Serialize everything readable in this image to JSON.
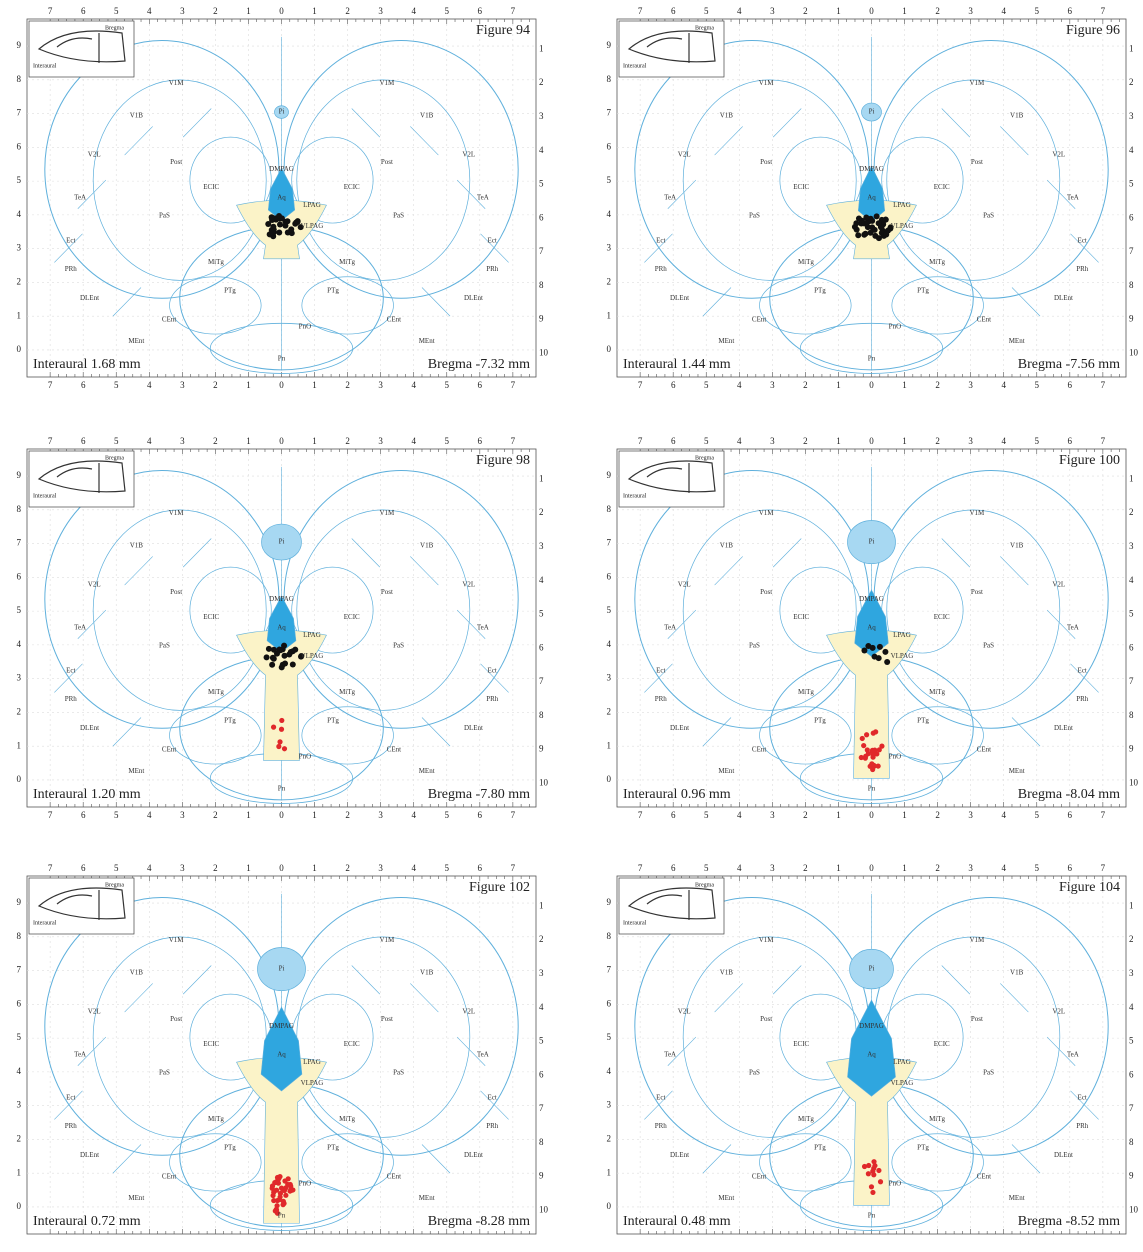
{
  "axis": {
    "top": [
      "7",
      "6",
      "5",
      "4",
      "3",
      "2",
      "1",
      "0",
      "1",
      "2",
      "3",
      "4",
      "5",
      "6",
      "7"
    ],
    "left": [
      "9",
      "8",
      "7",
      "6",
      "5",
      "4",
      "3",
      "2",
      "1",
      "0"
    ],
    "right": [
      "1",
      "2",
      "3",
      "4",
      "5",
      "6",
      "7",
      "8",
      "9",
      "10"
    ]
  },
  "inset": {
    "interaural": "Interaural",
    "bregma": "Bregma"
  },
  "panels": [
    {
      "figure": "Figure 94",
      "interaural": "Interaural 1.68 mm",
      "bregma": "Bregma -7.32 mm",
      "left_labels": [
        "V1M",
        "V1B",
        "V2L",
        "TeA",
        "Ect",
        "PRh",
        "DLEnt",
        "MEnt",
        "CEnt",
        "Post",
        "PaS",
        "ECIC",
        "MiTg",
        "PTg"
      ],
      "right_labels": [
        "V1M",
        "V1B",
        "V2L",
        "TeA",
        "Ect",
        "PRh",
        "DLEnt",
        "MEnt",
        "CEnt",
        "Post",
        "PaS",
        "ECIC",
        "MiTg",
        "PTg"
      ],
      "mid_labels": [
        "Pi",
        "DMPAG",
        "Aq",
        "LPAG",
        "VLPAG",
        "PnO",
        "Pn"
      ]
    },
    {
      "figure": "Figure 96",
      "interaural": "Interaural 1.44 mm",
      "bregma": "Bregma -7.56 mm",
      "left_labels": [
        "V1M",
        "V1B",
        "V2L",
        "TeA",
        "Ect",
        "PRh",
        "DLEnt",
        "MEnt",
        "CEnt",
        "Post",
        "PaS",
        "ECIC",
        "MiTg",
        "PTg"
      ],
      "right_labels": [
        "V1M",
        "V1B",
        "V2L",
        "TeA",
        "Ect",
        "PRh",
        "DLEnt",
        "MEnt",
        "CEnt",
        "Post",
        "PaS",
        "ECIC",
        "MiTg",
        "PTg"
      ],
      "mid_labels": [
        "Pi",
        "DMPAG",
        "Aq",
        "LPAG",
        "VLPAG",
        "PnO",
        "Pn"
      ]
    },
    {
      "figure": "Figure 98",
      "interaural": "Interaural 1.20 mm",
      "bregma": "Bregma -7.80 mm",
      "left_labels": [
        "V1M",
        "V1B",
        "V2L",
        "TeA",
        "Ect",
        "PRh",
        "DLEnt",
        "MEnt",
        "CEnt",
        "Post",
        "PaS",
        "ECIC",
        "MiTg",
        "PTg"
      ],
      "right_labels": [
        "V1M",
        "V1B",
        "V2L",
        "TeA",
        "Ect",
        "PRh",
        "DLEnt",
        "MEnt",
        "CEnt",
        "Post",
        "PaS",
        "ECIC",
        "MiTg",
        "PTg"
      ],
      "mid_labels": [
        "Pi",
        "DMPAG",
        "Aq",
        "LPAG",
        "VLPAG",
        "PnO",
        "Pn"
      ]
    },
    {
      "figure": "Figure 100",
      "interaural": "Interaural 0.96 mm",
      "bregma": "Bregma -8.04 mm",
      "left_labels": [
        "V1M",
        "V1B",
        "V2L",
        "TeA",
        "Ect",
        "PRh",
        "DLEnt",
        "MEnt",
        "CEnt",
        "Post",
        "PaS",
        "ECIC",
        "MiTg",
        "PTg"
      ],
      "right_labels": [
        "V1M",
        "V1B",
        "V2L",
        "TeA",
        "Ect",
        "PRh",
        "DLEnt",
        "MEnt",
        "CEnt",
        "Post",
        "PaS",
        "ECIC",
        "MiTg",
        "PTg"
      ],
      "mid_labels": [
        "Pi",
        "DMPAG",
        "Aq",
        "LPAG",
        "VLPAG",
        "PnO",
        "Pn"
      ]
    },
    {
      "figure": "Figure 102",
      "interaural": "Interaural 0.72 mm",
      "bregma": "Bregma -8.28 mm",
      "left_labels": [
        "V1M",
        "V1B",
        "V2L",
        "TeA",
        "Ect",
        "PRh",
        "DLEnt",
        "MEnt",
        "CEnt",
        "Post",
        "PaS",
        "ECIC",
        "MiTg",
        "PTg"
      ],
      "right_labels": [
        "V1M",
        "V1B",
        "V2L",
        "TeA",
        "Ect",
        "PRh",
        "DLEnt",
        "MEnt",
        "CEnt",
        "Post",
        "PaS",
        "ECIC",
        "MiTg",
        "PTg"
      ],
      "mid_labels": [
        "Pi",
        "DMPAG",
        "Aq",
        "LPAG",
        "VLPAG",
        "PnO",
        "Pn"
      ]
    },
    {
      "figure": "Figure 104",
      "interaural": "Interaural 0.48 mm",
      "bregma": "Bregma -8.52 mm",
      "left_labels": [
        "V1M",
        "V1B",
        "V2L",
        "TeA",
        "Ect",
        "PRh",
        "DLEnt",
        "MEnt",
        "CEnt",
        "Post",
        "PaS",
        "ECIC",
        "MiTg",
        "PTg"
      ],
      "right_labels": [
        "V1M",
        "V1B",
        "V2L",
        "TeA",
        "Ect",
        "PRh",
        "DLEnt",
        "MEnt",
        "CEnt",
        "Post",
        "PaS",
        "ECIC",
        "MiTg",
        "PTg"
      ],
      "mid_labels": [
        "Pi",
        "DMPAG",
        "Aq",
        "LPAG",
        "VLPAG",
        "PnO",
        "Pn"
      ]
    }
  ]
}
